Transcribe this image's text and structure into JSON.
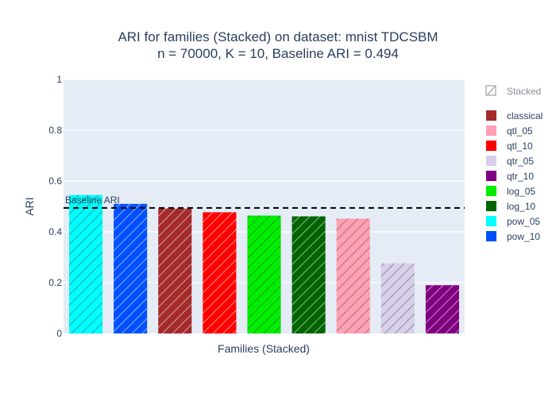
{
  "chart_data": {
    "type": "bar",
    "title_line1": "ARI for families (Stacked) on dataset: mnist TDCSBM",
    "title_line2": "n = 70000, K = 10, Baseline ARI = 0.494",
    "xlabel": "Families (Stacked)",
    "ylabel": "ARI",
    "ylim": [
      0,
      1
    ],
    "yticks": [
      "0",
      "0.2",
      "0.4",
      "0.6",
      "0.8",
      "1"
    ],
    "ytick_values": [
      0,
      0.2,
      0.4,
      0.6,
      0.8,
      1
    ],
    "grid": true,
    "bar_pattern": "diagonal-hatch",
    "baseline": {
      "value": 0.494,
      "label": "Baseline ARI",
      "style": "dashed",
      "color": "#000000"
    },
    "bars": [
      {
        "family": "pow_05",
        "value": 0.545,
        "color": "#00ffff"
      },
      {
        "family": "pow_10",
        "value": 0.51,
        "color": "#0050ff"
      },
      {
        "family": "classical",
        "value": 0.492,
        "color": "#a52a2a"
      },
      {
        "family": "qtl_10",
        "value": 0.477,
        "color": "#ff0000"
      },
      {
        "family": "log_05",
        "value": 0.464,
        "color": "#00ee00"
      },
      {
        "family": "log_10",
        "value": 0.461,
        "color": "#006400"
      },
      {
        "family": "qtl_05",
        "value": 0.452,
        "color": "#ffa0b4"
      },
      {
        "family": "qtr_05",
        "value": 0.276,
        "color": "#d8d0ea"
      },
      {
        "family": "qtr_10",
        "value": 0.19,
        "color": "#800080"
      }
    ],
    "legend": {
      "position": "right",
      "header": "Stacked",
      "items": [
        {
          "label": "classical",
          "color": "#a52a2a"
        },
        {
          "label": "qtl_05",
          "color": "#ffa0b4"
        },
        {
          "label": "qtl_10",
          "color": "#ff0000"
        },
        {
          "label": "qtr_05",
          "color": "#d8d0ea"
        },
        {
          "label": "qtr_10",
          "color": "#800080"
        },
        {
          "label": "log_05",
          "color": "#00ee00"
        },
        {
          "label": "log_10",
          "color": "#006400"
        },
        {
          "label": "pow_05",
          "color": "#00ffff"
        },
        {
          "label": "pow_10",
          "color": "#0050ff"
        }
      ]
    },
    "plot_background": "#e5ecf6"
  }
}
